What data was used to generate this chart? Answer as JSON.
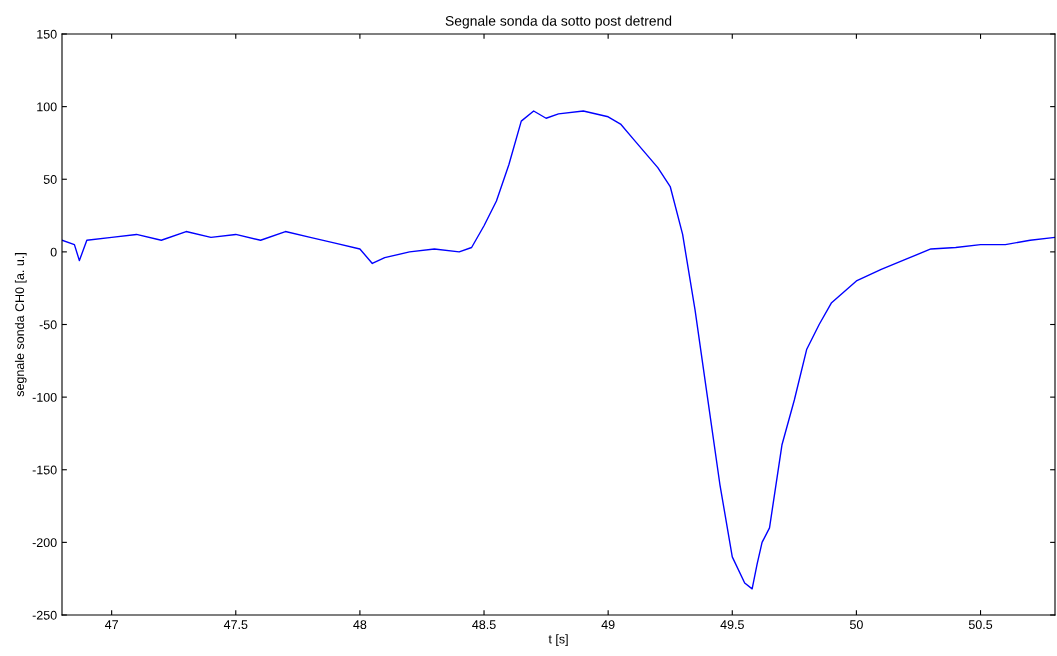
{
  "chart_data": {
    "type": "line",
    "title": "Segnale sonda da sotto post detrend",
    "xlabel": "t [s]",
    "ylabel": "segnale sonda CH0 [a. u.]",
    "xlim": [
      46.8,
      50.8
    ],
    "xticks": [
      47,
      47.5,
      48,
      48.5,
      49,
      49.5,
      50,
      50.5
    ],
    "ylim": [
      -250,
      150
    ],
    "yticks": [
      -250,
      -200,
      -150,
      -100,
      -50,
      0,
      50,
      100,
      150
    ],
    "grid": false,
    "legend": false,
    "marker": "none",
    "line_style": "solid",
    "series": [
      {
        "color": "#0000ff",
        "x": [
          46.8,
          46.85,
          46.87,
          46.9,
          47.0,
          47.1,
          47.2,
          47.3,
          47.4,
          47.5,
          47.6,
          47.7,
          47.8,
          47.9,
          48.0,
          48.05,
          48.1,
          48.2,
          48.3,
          48.4,
          48.45,
          48.5,
          48.55,
          48.6,
          48.65,
          48.7,
          48.75,
          48.8,
          48.9,
          49.0,
          49.05,
          49.1,
          49.15,
          49.2,
          49.25,
          49.3,
          49.35,
          49.4,
          49.45,
          49.5,
          49.55,
          49.58,
          49.6,
          49.62,
          49.65,
          49.7,
          49.75,
          49.8,
          49.85,
          49.9,
          50.0,
          50.1,
          50.2,
          50.3,
          50.4,
          50.5,
          50.6,
          50.7,
          50.8
        ],
        "values": [
          8,
          5,
          -6,
          8,
          10,
          12,
          8,
          14,
          10,
          12,
          8,
          14,
          10,
          6,
          2,
          -8,
          -4,
          0,
          2,
          0,
          3,
          18,
          35,
          60,
          90,
          97,
          92,
          95,
          97,
          93,
          88,
          78,
          68,
          58,
          45,
          12,
          -40,
          -100,
          -160,
          -210,
          -228,
          -232,
          -215,
          -200,
          -190,
          -133,
          -102,
          -67,
          -50,
          -35,
          -20,
          -12,
          -5,
          2,
          3,
          5,
          5,
          8,
          10
        ]
      }
    ]
  }
}
